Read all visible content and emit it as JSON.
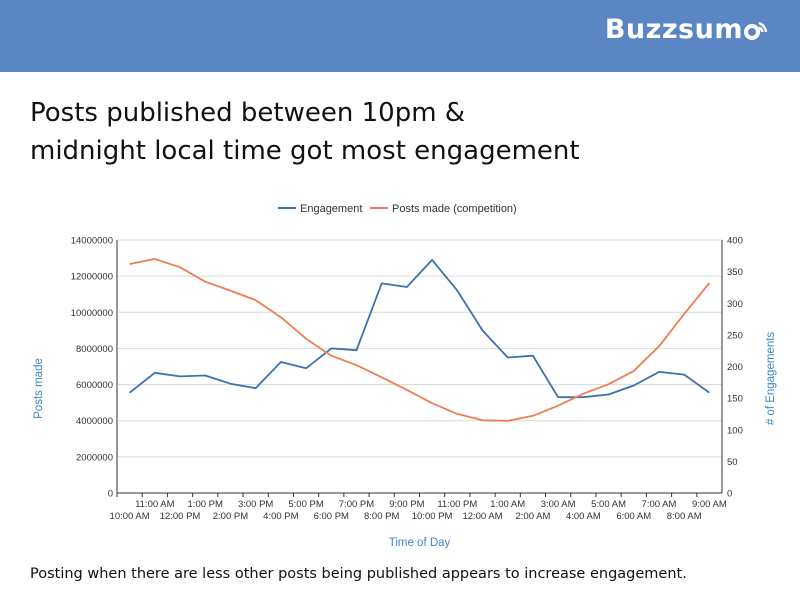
{
  "brand": {
    "logo_text": "Buzzsum",
    "logo_icon": "wifi-signal-icon",
    "banner_color": "#5b86c4"
  },
  "headline": {
    "line1": "Posts published between 10pm &",
    "line2": "midnight local time got most engagement"
  },
  "footnote": "Posting when there are less other posts being published appears to increase engagement.",
  "chart_data": {
    "type": "line",
    "xlabel": "Time of Day",
    "ylabel": "Posts made",
    "y2label": "# of Engagements",
    "categories": [
      "10:00 AM",
      "11:00 AM",
      "12:00 PM",
      "1:00 PM",
      "2:00 PM",
      "3:00 PM",
      "4:00 PM",
      "5:00 PM",
      "6:00 PM",
      "7:00 PM",
      "8:00 PM",
      "9:00 PM",
      "10:00 PM",
      "11:00 PM",
      "12:00 AM",
      "1:00 AM",
      "2:00 AM",
      "3:00 AM",
      "4:00 AM",
      "5:00 AM",
      "6:00 AM",
      "7:00 AM",
      "8:00 AM",
      "9:00 AM"
    ],
    "ylim": [
      0,
      14000000
    ],
    "yticks": [
      "0",
      "2000000",
      "4000000",
      "6000000",
      "8000000",
      "10000000",
      "12000000",
      "14000000"
    ],
    "y2lim": [
      0,
      400
    ],
    "y2ticks": [
      "0",
      "50",
      "100",
      "150",
      "200",
      "250",
      "300",
      "350",
      "400"
    ],
    "legend_position": "top",
    "grid": "horizontal",
    "series": [
      {
        "name": "Engagement",
        "color": "#3a72b0",
        "axis": "left",
        "values": [
          5550000,
          6650000,
          6450000,
          6500000,
          6050000,
          5800000,
          7250000,
          6900000,
          8000000,
          7900000,
          11600000,
          11400000,
          12900000,
          11200000,
          9000000,
          7500000,
          7600000,
          5300000,
          5300000,
          5450000,
          5950000,
          6700000,
          6550000,
          5550000
        ]
      },
      {
        "name": "Posts made (competition)",
        "color": "#ee7e52",
        "axis": "right",
        "values": [
          362,
          370,
          357,
          334,
          320,
          305,
          278,
          244,
          217,
          202,
          183,
          163,
          142,
          125,
          115,
          114,
          122,
          138,
          157,
          172,
          193,
          232,
          283,
          332
        ]
      }
    ]
  }
}
